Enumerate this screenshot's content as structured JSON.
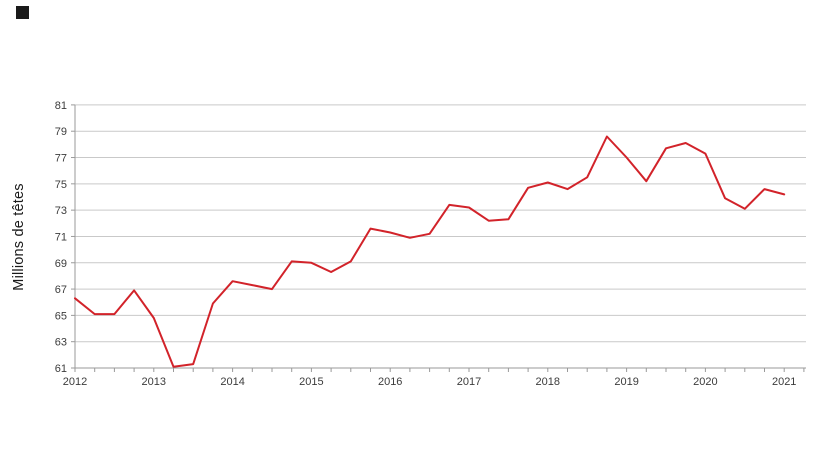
{
  "page": {
    "background_color": "#ffffff"
  },
  "decor": {
    "corner_square_color": "#1a1a1a"
  },
  "style": {
    "grid_color": "#c9c9c9",
    "axis_color": "#9a9a9a",
    "tick_color": "#9a9a9a",
    "tick_label_color": "#3c3c3c",
    "axis_label_color": "#1a1a1a",
    "line_width": 2
  },
  "chart_data": {
    "type": "line",
    "title": "",
    "xlabel": "",
    "ylabel": "Millions de têtes",
    "ylim": [
      61,
      81
    ],
    "y_tick_step": 2,
    "y_tick_labels": [
      "61",
      "63",
      "65",
      "67",
      "69",
      "71",
      "73",
      "75",
      "77",
      "79",
      "81"
    ],
    "x_tick_labels": [
      "2012",
      "2013",
      "2014",
      "2015",
      "2016",
      "2017",
      "2018",
      "2019",
      "2020",
      "2021"
    ],
    "x_minor_ticks": "quarterly",
    "grid": "horizontal",
    "legend_position": "none",
    "series": [
      {
        "name": "Millions de têtes",
        "color": "#d2232a",
        "x": [
          "2012Q1",
          "2012Q2",
          "2012Q3",
          "2012Q4",
          "2013Q1",
          "2013Q2",
          "2013Q3",
          "2013Q4",
          "2014Q1",
          "2014Q2",
          "2014Q3",
          "2014Q4",
          "2015Q1",
          "2015Q2",
          "2015Q3",
          "2015Q4",
          "2016Q1",
          "2016Q2",
          "2016Q3",
          "2016Q4",
          "2017Q1",
          "2017Q2",
          "2017Q3",
          "2017Q4",
          "2018Q1",
          "2018Q2",
          "2018Q3",
          "2018Q4",
          "2019Q1",
          "2019Q2",
          "2019Q3",
          "2019Q4",
          "2020Q1",
          "2020Q2",
          "2020Q3",
          "2020Q4",
          "2021Q1"
        ],
        "values": [
          66.3,
          65.1,
          65.1,
          66.9,
          64.8,
          61.1,
          61.3,
          65.9,
          67.6,
          67.3,
          67.0,
          69.1,
          69.0,
          68.3,
          69.1,
          71.6,
          71.3,
          70.9,
          71.2,
          73.4,
          73.2,
          72.2,
          72.3,
          74.7,
          75.1,
          74.6,
          75.5,
          78.6,
          77.0,
          75.2,
          77.7,
          78.1,
          77.3,
          73.9,
          73.1,
          74.6,
          74.2
        ]
      }
    ]
  }
}
